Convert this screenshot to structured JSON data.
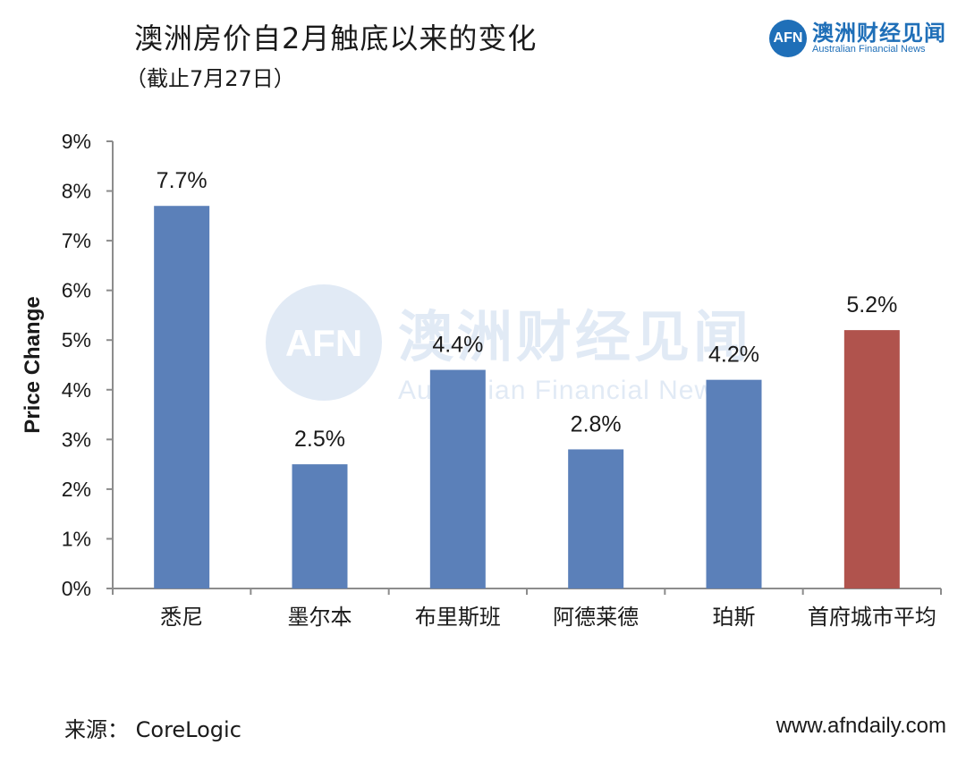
{
  "header": {
    "title": "澳洲房价自2月触底以来的变化",
    "subtitle": "（截止7月27日）"
  },
  "brand": {
    "logo_text": "AFN",
    "name_cn": "澳洲财经见闻",
    "name_en": "Australian Financial News"
  },
  "watermark": {
    "logo_text": "AFN",
    "name_cn": "澳洲财经见闻",
    "name_en": "Australian Financial News"
  },
  "footer": {
    "source": "来源： CoreLogic",
    "website": "www.afndaily.com"
  },
  "colors": {
    "bar_default": "#5b80b9",
    "bar_highlight": "#b0534d",
    "axis": "#8c8c8c",
    "watermark": "#c9d9ee"
  },
  "chart_data": {
    "type": "bar",
    "title": "澳洲房价自2月触底以来的变化",
    "xlabel": "",
    "ylabel": "Price Change",
    "ylim": [
      0,
      9
    ],
    "yticks": [
      "0%",
      "1%",
      "2%",
      "3%",
      "4%",
      "5%",
      "6%",
      "7%",
      "8%",
      "9%"
    ],
    "categories": [
      "悉尼",
      "墨尔本",
      "布里斯班",
      "阿德莱德",
      "珀斯",
      "首府城市平均"
    ],
    "values": [
      7.7,
      2.5,
      4.4,
      2.8,
      4.2,
      5.2
    ],
    "value_labels": [
      "7.7%",
      "2.5%",
      "4.4%",
      "2.8%",
      "4.2%",
      "5.2%"
    ],
    "highlight_index": 5,
    "grid": false
  }
}
